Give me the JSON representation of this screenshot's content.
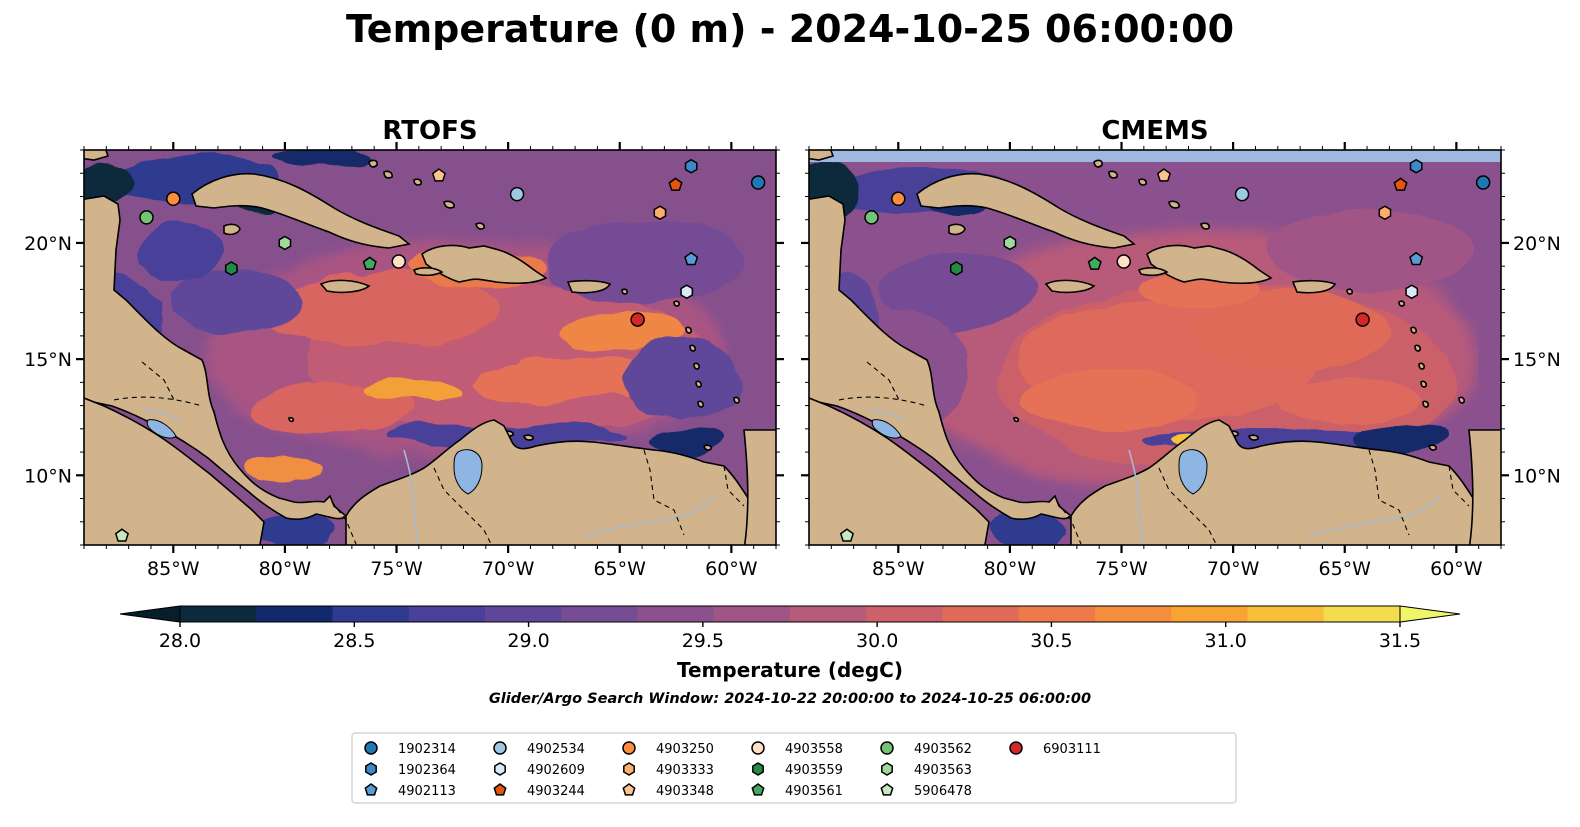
{
  "title": "Temperature (0 m) - 2024-10-25 06:00:00",
  "panels": [
    {
      "title": "RTOFS"
    },
    {
      "title": "CMEMS"
    }
  ],
  "map": {
    "lon_range": [
      -89,
      -58
    ],
    "lat_range": [
      7,
      24
    ],
    "lon_ticks": [
      -85,
      -80,
      -75,
      -70,
      -65,
      -60
    ],
    "lon_tick_labels": [
      "85°W",
      "80°W",
      "75°W",
      "70°W",
      "65°W",
      "60°W"
    ],
    "lat_ticks": [
      10,
      15,
      20
    ],
    "lat_tick_labels": [
      "10°N",
      "15°N",
      "20°N"
    ],
    "land_color": "#d2b48c",
    "lake_color": "#8fb6e3",
    "river_color": "#a9b8cc",
    "cmems_missing_band_color": "#9fb8e0"
  },
  "colorbar": {
    "label": "Temperature (degC)",
    "min": 28.0,
    "max": 31.5,
    "step": 0.25,
    "tick_values": [
      28.0,
      28.5,
      29.0,
      29.5,
      30.0,
      30.5,
      31.0,
      31.5
    ],
    "tick_labels": [
      "28.0",
      "28.5",
      "29.0",
      "29.5",
      "30.0",
      "30.5",
      "31.0",
      "31.5"
    ],
    "colors": [
      "#0b2a3d",
      "#122a6b",
      "#2d3a8f",
      "#4a3f9a",
      "#5f4699",
      "#764c95",
      "#8b518e",
      "#a15586",
      "#b85a79",
      "#cc6169",
      "#e06b59",
      "#ee7a49",
      "#f58d3a",
      "#f8a332",
      "#f8c03a",
      "#f4dc50"
    ],
    "extend_low_color": "#061f2b",
    "extend_high_color": "#f0f56a"
  },
  "search_window": "Glider/Argo Search Window: 2024-10-22 20:00:00 to 2024-10-25 06:00:00",
  "floats": [
    {
      "id": "1902314",
      "marker": "circle",
      "color": "#1f77b4",
      "lon": -58.8,
      "lat": 22.6
    },
    {
      "id": "1902364",
      "marker": "hexagon",
      "color": "#3b89c9",
      "lon": -61.8,
      "lat": 23.3
    },
    {
      "id": "4902113",
      "marker": "pentagon",
      "color": "#5b9bd5",
      "lon": -61.8,
      "lat": 19.3
    },
    {
      "id": "4902534",
      "marker": "circle",
      "color": "#9ecae1",
      "lon": -69.6,
      "lat": 22.1
    },
    {
      "id": "4902609",
      "marker": "hexagon",
      "color": "#dbe9f6",
      "lon": -62.0,
      "lat": 17.9
    },
    {
      "id": "4903244",
      "marker": "pentagon",
      "color": "#e6550d",
      "lon": -62.5,
      "lat": 22.5
    },
    {
      "id": "4903250",
      "marker": "circle",
      "color": "#fd8d3c",
      "lon": -85.0,
      "lat": 21.9
    },
    {
      "id": "4903333",
      "marker": "hexagon",
      "color": "#fdae6b",
      "lon": -63.2,
      "lat": 21.3
    },
    {
      "id": "4903348",
      "marker": "pentagon",
      "color": "#fdc38d",
      "lon": -73.1,
      "lat": 22.9
    },
    {
      "id": "4903558",
      "marker": "circle",
      "color": "#fde0c5",
      "lon": -74.9,
      "lat": 19.2
    },
    {
      "id": "4903559",
      "marker": "hexagon",
      "color": "#238b45",
      "lon": -82.4,
      "lat": 18.9
    },
    {
      "id": "4903561",
      "marker": "pentagon",
      "color": "#41ab5d",
      "lon": -76.2,
      "lat": 19.1
    },
    {
      "id": "4903562",
      "marker": "circle",
      "color": "#74c476",
      "lon": -86.2,
      "lat": 21.1
    },
    {
      "id": "4903563",
      "marker": "hexagon",
      "color": "#a1d99b",
      "lon": -80.0,
      "lat": 20.0
    },
    {
      "id": "5906478",
      "marker": "pentagon",
      "color": "#c7e9c0",
      "lon": -87.3,
      "lat": 7.4
    },
    {
      "id": "6903111",
      "marker": "circle",
      "color": "#d62728",
      "lon": -64.2,
      "lat": 16.7
    }
  ]
}
